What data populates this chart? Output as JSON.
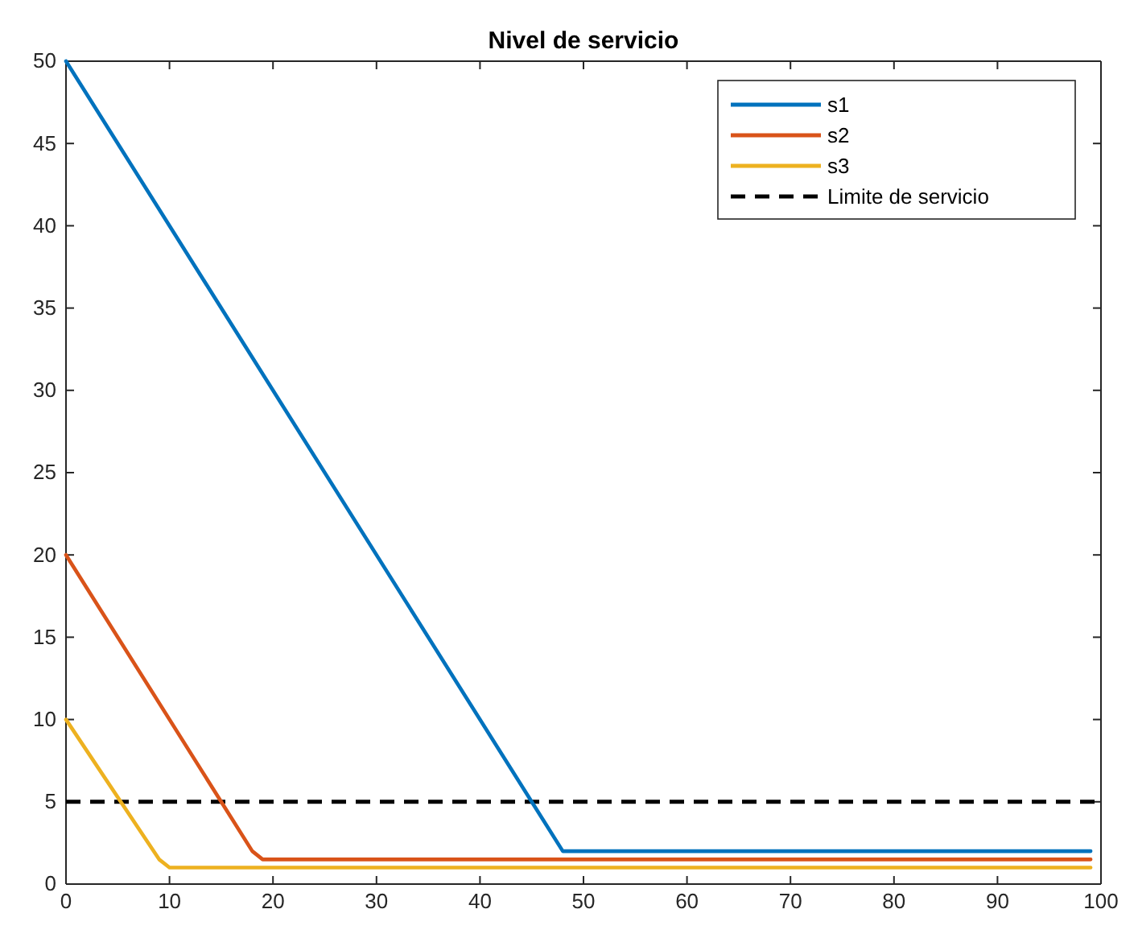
{
  "chart_data": {
    "type": "line",
    "title": "Nivel de servicio",
    "series": [
      {
        "name": "s1",
        "color": "#0072bd",
        "x": [
          0,
          48,
          49,
          99
        ],
        "values": [
          50,
          2,
          2,
          2
        ]
      },
      {
        "name": "s2",
        "color": "#d95319",
        "x": [
          0,
          18,
          19,
          99
        ],
        "values": [
          20,
          2,
          1.5,
          1.5
        ]
      },
      {
        "name": "s3",
        "color": "#edb120",
        "x": [
          0,
          9,
          10,
          99
        ],
        "values": [
          10,
          1.5,
          1,
          1
        ]
      }
    ],
    "ref_lines": [
      {
        "axis": "y",
        "value": 5,
        "label": "Limite de servicio",
        "color": "#000000",
        "line_style": "dashed"
      }
    ],
    "xlim": [
      0,
      100
    ],
    "xticks": [
      0,
      10,
      20,
      30,
      40,
      50,
      60,
      70,
      80,
      90,
      100
    ],
    "ylim": [
      0,
      50
    ],
    "yticks": [
      0,
      5,
      10,
      15,
      20,
      25,
      30,
      35,
      40,
      45,
      50
    ],
    "legend": "top right",
    "line_style": "solid",
    "marker": "none",
    "grid": false
  }
}
